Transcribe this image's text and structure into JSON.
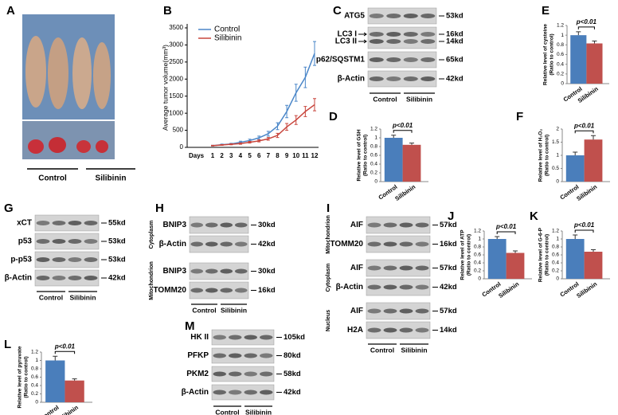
{
  "photo": {
    "panel": "A",
    "groups": [
      "Control",
      "Silibinin"
    ]
  },
  "chart_data": [
    {
      "panel": "B",
      "type": "line",
      "ylabel": "Average tumor volume(mm³)",
      "xlabel": "Days",
      "categories": [
        "1",
        "2",
        "3",
        "4",
        "5",
        "6",
        "7",
        "8",
        "9",
        "10",
        "11",
        "12"
      ],
      "ylim": [
        0,
        3500
      ],
      "yticks": [
        0,
        500,
        1000,
        1500,
        2000,
        2500,
        3000,
        3500
      ],
      "series": [
        {
          "name": "Control",
          "color": "#4a86c8",
          "values": [
            50,
            80,
            100,
            150,
            200,
            280,
            400,
            620,
            1050,
            1600,
            2050,
            2750
          ],
          "errors": [
            10,
            15,
            20,
            30,
            40,
            50,
            70,
            100,
            180,
            250,
            300,
            350
          ]
        },
        {
          "name": "Silibinin",
          "color": "#c8453c",
          "values": [
            50,
            70,
            90,
            110,
            150,
            190,
            250,
            350,
            600,
            800,
            1050,
            1250
          ],
          "errors": [
            10,
            12,
            15,
            20,
            25,
            30,
            40,
            60,
            100,
            130,
            150,
            180
          ]
        }
      ]
    },
    {
      "panel": "E",
      "type": "bar",
      "ylabel": [
        "Relative level of cysteine",
        "(Ratio to control)"
      ],
      "categories": [
        "Control",
        "Silibinin"
      ],
      "values": [
        1.0,
        0.83
      ],
      "errors": [
        0.07,
        0.05
      ],
      "colors": [
        "#4a7ebb",
        "#c0504d"
      ],
      "ylim": [
        0,
        1.2
      ],
      "yticks": [
        0,
        0.2,
        0.4,
        0.6,
        0.8,
        1,
        1.2
      ],
      "annotation": "p<0.01"
    },
    {
      "panel": "D",
      "type": "bar",
      "ylabel": [
        "Relative level of GSH",
        "(Ratio to control)"
      ],
      "categories": [
        "Control",
        "Silibinin"
      ],
      "values": [
        1.0,
        0.84
      ],
      "errors": [
        0.06,
        0.04
      ],
      "colors": [
        "#4a7ebb",
        "#c0504d"
      ],
      "ylim": [
        0,
        1.2
      ],
      "yticks": [
        0,
        0.2,
        0.4,
        0.6,
        0.8,
        1,
        1.2
      ],
      "annotation": "p<0.01"
    },
    {
      "panel": "F",
      "type": "bar",
      "ylabel": [
        "Relative level of H₂O₂",
        "(Ratio to control)"
      ],
      "categories": [
        "Control",
        "Silibinin"
      ],
      "values": [
        1.0,
        1.6
      ],
      "errors": [
        0.12,
        0.15
      ],
      "colors": [
        "#4a7ebb",
        "#c0504d"
      ],
      "ylim": [
        0,
        2
      ],
      "yticks": [
        0,
        0.5,
        1,
        1.5,
        2
      ],
      "annotation": "p<0.01"
    },
    {
      "panel": "J",
      "type": "bar",
      "ylabel": [
        "Relative level of ATP",
        "(Ratio to control)"
      ],
      "categories": [
        "Control",
        "Silibinin"
      ],
      "values": [
        1.0,
        0.65
      ],
      "errors": [
        0.06,
        0.05
      ],
      "colors": [
        "#4a7ebb",
        "#c0504d"
      ],
      "ylim": [
        0,
        1.2
      ],
      "yticks": [
        0,
        0.2,
        0.4,
        0.6,
        0.8,
        1,
        1.2
      ],
      "annotation": "p<0.01"
    },
    {
      "panel": "K",
      "type": "bar",
      "ylabel": [
        "Relative level of G-6-P",
        "(Ratio to control)"
      ],
      "categories": [
        "Control",
        "Silibinin"
      ],
      "values": [
        1.0,
        0.68
      ],
      "errors": [
        0.1,
        0.05
      ],
      "colors": [
        "#4a7ebb",
        "#c0504d"
      ],
      "ylim": [
        0,
        1.2
      ],
      "yticks": [
        0,
        0.2,
        0.4,
        0.6,
        0.8,
        1,
        1.2
      ],
      "annotation": "p<0.01"
    },
    {
      "panel": "L",
      "type": "bar",
      "ylabel": [
        "Relative level of pyruvate",
        "(Ratio to control)"
      ],
      "categories": [
        "Control",
        "Silibinin"
      ],
      "values": [
        1.0,
        0.52
      ],
      "errors": [
        0.1,
        0.04
      ],
      "colors": [
        "#4a7ebb",
        "#c0504d"
      ],
      "ylim": [
        0,
        1.2
      ],
      "yticks": [
        0,
        0.2,
        0.4,
        0.6,
        0.8,
        1,
        1.2
      ],
      "annotation": "p<0.01"
    }
  ],
  "blots": [
    {
      "panel": "C",
      "groups": [
        "Control",
        "Silibinin"
      ],
      "rows": [
        {
          "labels": [
            "ATG5"
          ],
          "sizes": [
            "53kd"
          ]
        },
        {
          "labels": [
            "LC3 I",
            "LC3 II"
          ],
          "sizes": [
            "16kd",
            "14kd"
          ]
        },
        {
          "labels": [
            "p62/SQSTM1"
          ],
          "sizes": [
            "65kd"
          ]
        },
        {
          "labels": [
            "β-Actin"
          ],
          "sizes": [
            "42kd"
          ]
        }
      ]
    },
    {
      "panel": "G",
      "groups": [
        "Control",
        "Silibinin"
      ],
      "rows": [
        {
          "labels": [
            "xCT"
          ],
          "sizes": [
            "55kd"
          ]
        },
        {
          "labels": [
            "p53"
          ],
          "sizes": [
            "53kd"
          ]
        },
        {
          "labels": [
            "p-p53"
          ],
          "sizes": [
            "53kd"
          ]
        },
        {
          "labels": [
            "β-Actin"
          ],
          "sizes": [
            "42kd"
          ]
        }
      ]
    },
    {
      "panel": "H",
      "groups": [
        "Control",
        "Silibinin"
      ],
      "sections": [
        {
          "name": "Cytoplasm",
          "rows": [
            {
              "labels": [
                "BNIP3"
              ],
              "sizes": [
                "30kd"
              ]
            },
            {
              "labels": [
                "β-Actin"
              ],
              "sizes": [
                "42kd"
              ]
            }
          ]
        },
        {
          "name": "Mitochondrion",
          "rows": [
            {
              "labels": [
                "BNIP3"
              ],
              "sizes": [
                "30kd"
              ]
            },
            {
              "labels": [
                "TOMM20"
              ],
              "sizes": [
                "16kd"
              ]
            }
          ]
        }
      ]
    },
    {
      "panel": "I",
      "groups": [
        "Control",
        "Silibinin"
      ],
      "sections": [
        {
          "name": "Mitochondrion",
          "rows": [
            {
              "labels": [
                "AIF"
              ],
              "sizes": [
                "57kd"
              ]
            },
            {
              "labels": [
                "TOMM20"
              ],
              "sizes": [
                "16kd"
              ]
            }
          ]
        },
        {
          "name": "Cytoplasm",
          "rows": [
            {
              "labels": [
                "AIF"
              ],
              "sizes": [
                "57kd"
              ]
            },
            {
              "labels": [
                "β-Actin"
              ],
              "sizes": [
                "42kd"
              ]
            }
          ]
        },
        {
          "name": "Nucleus",
          "rows": [
            {
              "labels": [
                "AIF"
              ],
              "sizes": [
                "57kd"
              ]
            },
            {
              "labels": [
                "H2A"
              ],
              "sizes": [
                "14kd"
              ]
            }
          ]
        }
      ]
    },
    {
      "panel": "M",
      "groups": [
        "Control",
        "Silibinin"
      ],
      "rows": [
        {
          "labels": [
            "HK II"
          ],
          "sizes": [
            "105kd"
          ]
        },
        {
          "labels": [
            "PFKP"
          ],
          "sizes": [
            "80kd"
          ]
        },
        {
          "labels": [
            "PKM2"
          ],
          "sizes": [
            "58kd"
          ]
        },
        {
          "labels": [
            "β-Actin"
          ],
          "sizes": [
            "42kd"
          ]
        }
      ]
    }
  ]
}
